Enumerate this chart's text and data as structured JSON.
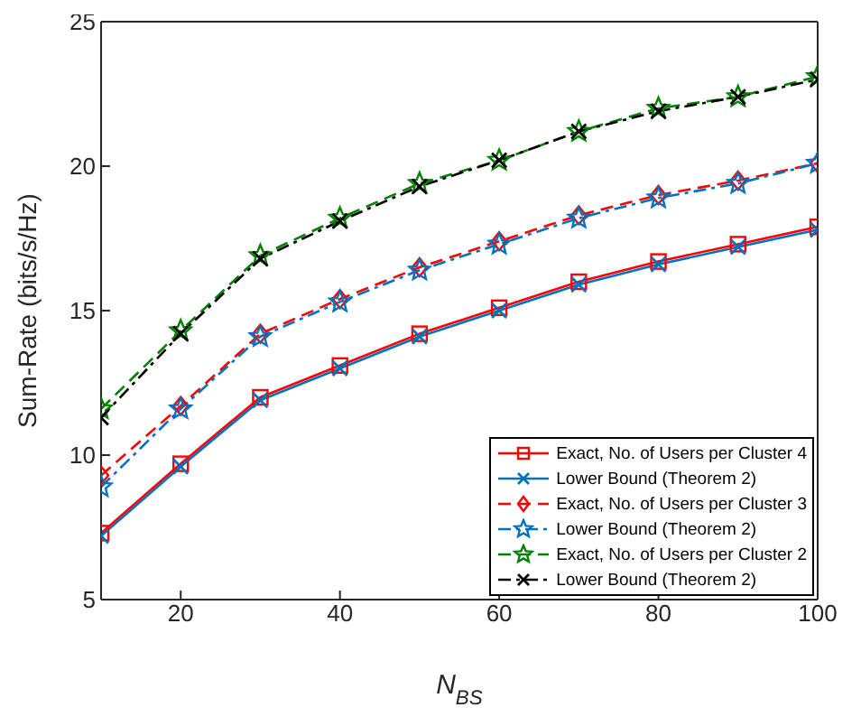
{
  "chart_data": {
    "type": "line",
    "xlabel": "N$_{BS}$",
    "ylabel": "Sum-Rate (bits/s/Hz)",
    "x": [
      10,
      20,
      30,
      40,
      50,
      60,
      70,
      80,
      90,
      100
    ],
    "series": [
      {
        "name": "Exact, No. of Users per Cluster 4",
        "color": "#ff0000",
        "marker": "square",
        "line_style": "solid",
        "values": [
          7.3,
          9.7,
          12.0,
          13.1,
          14.2,
          15.1,
          16.0,
          16.7,
          17.3,
          17.9
        ]
      },
      {
        "name": "Lower Bound (Theorem 2)",
        "color": "#0072bd",
        "marker": "cross",
        "line_style": "solid",
        "values": [
          7.2,
          9.6,
          11.9,
          13.0,
          14.1,
          15.0,
          15.9,
          16.6,
          17.2,
          17.8
        ]
      },
      {
        "name": "Exact, No. of Users per Cluster 3",
        "color": "#ff0000",
        "marker": "diamond",
        "line_style": "dashed",
        "values": [
          9.3,
          11.7,
          14.2,
          15.4,
          16.5,
          17.4,
          18.3,
          19.0,
          19.5,
          20.1
        ]
      },
      {
        "name": "Lower Bound (Theorem 2)",
        "color": "#0072bd",
        "marker": "star",
        "line_style": "dotted",
        "values": [
          8.9,
          11.6,
          14.1,
          15.3,
          16.4,
          17.3,
          18.2,
          18.9,
          19.4,
          20.1
        ]
      },
      {
        "name": "Exact, No. of Users per Cluster 2",
        "color": "#008000",
        "marker": "star",
        "line_style": "dashed",
        "values": [
          11.6,
          14.3,
          16.9,
          18.2,
          19.4,
          20.2,
          21.2,
          22.0,
          22.4,
          23.1
        ]
      },
      {
        "name": "Lower Bound (Theorem 2)",
        "color": "#000000",
        "marker": "cross",
        "line_style": "dotted",
        "values": [
          11.3,
          14.2,
          16.8,
          18.1,
          19.3,
          20.2,
          21.2,
          21.9,
          22.4,
          23.0
        ]
      }
    ],
    "xlim": [
      10,
      100
    ],
    "xticks": [
      20,
      40,
      60,
      80,
      100
    ],
    "ylim": [
      5,
      25
    ],
    "yticks": [
      5,
      10,
      15,
      20,
      25
    ],
    "grid": false,
    "legend": "bottom right"
  }
}
